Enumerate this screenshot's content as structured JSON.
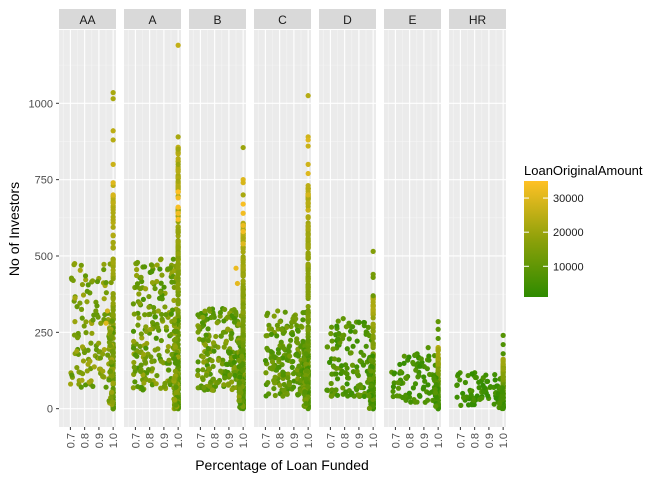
{
  "chart_data": {
    "type": "scatter",
    "xlabel": "Percentage of Loan Funded",
    "ylabel": "No of Investors",
    "facets": [
      "AA",
      "A",
      "B",
      "C",
      "D",
      "E",
      "HR"
    ],
    "xlim": [
      0.62,
      1.02
    ],
    "ylim": [
      -60,
      1240
    ],
    "x_ticks": [
      0.7,
      0.8,
      0.9,
      1.0
    ],
    "x_tick_labels": [
      "0.7",
      "0.8",
      "0.9",
      "1.0"
    ],
    "y_ticks": [
      0,
      250,
      500,
      750,
      1000
    ],
    "y_tick_labels": [
      "0",
      "250",
      "500",
      "750",
      "1000"
    ],
    "grid": true,
    "legend": {
      "title": "LoanOriginalAmount",
      "position": "right",
      "type": "colorbar",
      "range": [
        1000,
        35000
      ],
      "ticks": [
        10000,
        20000,
        30000
      ],
      "tick_labels": [
        "10000",
        "20000",
        "30000"
      ],
      "colors": {
        "low": "#2e8b00",
        "mid": "#8ea10a",
        "high": "#ffc125"
      }
    },
    "series": [
      {
        "facet": "AA",
        "x_range": [
          0.7,
          0.99
        ],
        "y_range": [
          70,
          480
        ],
        "amount_range": [
          8000,
          22000
        ],
        "full_y_max": 1035,
        "full_count": 130,
        "highlights": [
          [
            1.0,
            1035,
            22000
          ],
          [
            1.0,
            1015,
            22000
          ],
          [
            1.0,
            910,
            25000
          ],
          [
            1.0,
            880,
            24000
          ],
          [
            1.0,
            800,
            27000
          ],
          [
            1.0,
            740,
            30000
          ],
          [
            1.0,
            700,
            29000
          ],
          [
            0.73,
            475,
            18000
          ],
          [
            0.72,
            420,
            14000
          ],
          [
            0.96,
            320,
            28000
          ],
          [
            0.95,
            280,
            30000
          ],
          [
            0.71,
            110,
            9000
          ]
        ]
      },
      {
        "facet": "A",
        "x_range": [
          0.68,
          0.99
        ],
        "y_range": [
          60,
          490
        ],
        "amount_range": [
          6000,
          20000
        ],
        "full_y_max": 1190,
        "full_count": 220,
        "highlights": [
          [
            1.0,
            1190,
            26000
          ],
          [
            1.0,
            890,
            22000
          ],
          [
            1.0,
            850,
            21000
          ],
          [
            1.0,
            800,
            20000
          ],
          [
            1.0,
            710,
            35000
          ],
          [
            1.0,
            690,
            33000
          ],
          [
            1.0,
            660,
            34000
          ],
          [
            1.0,
            640,
            33000
          ],
          [
            1.0,
            620,
            34000
          ],
          [
            0.88,
            490,
            16000
          ],
          [
            0.74,
            430,
            14000
          ]
        ]
      },
      {
        "facet": "B",
        "x_range": [
          0.68,
          0.99
        ],
        "y_range": [
          60,
          330
        ],
        "amount_range": [
          5000,
          18000
        ],
        "full_y_max": 855,
        "full_count": 220,
        "highlights": [
          [
            1.0,
            855,
            20000
          ],
          [
            1.0,
            750,
            30000
          ],
          [
            1.0,
            740,
            29000
          ],
          [
            1.0,
            700,
            22000
          ],
          [
            1.0,
            670,
            34000
          ],
          [
            1.0,
            640,
            33000
          ],
          [
            1.0,
            600,
            32000
          ],
          [
            1.0,
            580,
            33000
          ],
          [
            1.0,
            540,
            30000
          ],
          [
            0.95,
            460,
            32000
          ],
          [
            0.96,
            410,
            31000
          ],
          [
            0.87,
            325,
            12000
          ]
        ]
      },
      {
        "facet": "C",
        "x_range": [
          0.7,
          0.99
        ],
        "y_range": [
          40,
          320
        ],
        "amount_range": [
          5000,
          16000
        ],
        "full_y_max": 1025,
        "full_count": 200,
        "highlights": [
          [
            1.0,
            1025,
            24000
          ],
          [
            1.0,
            890,
            28000
          ],
          [
            1.0,
            880,
            30000
          ],
          [
            1.0,
            860,
            27000
          ],
          [
            1.0,
            800,
            28000
          ],
          [
            1.0,
            770,
            30000
          ],
          [
            1.0,
            700,
            29000
          ],
          [
            1.0,
            650,
            27000
          ],
          [
            0.95,
            270,
            12000
          ]
        ]
      },
      {
        "facet": "D",
        "x_range": [
          0.67,
          0.99
        ],
        "y_range": [
          40,
          290
        ],
        "amount_range": [
          3000,
          12000
        ],
        "full_y_max": 515,
        "full_count": 130,
        "highlights": [
          [
            1.0,
            515,
            16000
          ],
          [
            1.0,
            440,
            14000
          ],
          [
            1.0,
            430,
            13000
          ],
          [
            1.0,
            370,
            12000
          ],
          [
            0.79,
            295,
            10000
          ],
          [
            0.83,
            280,
            9000
          ]
        ]
      },
      {
        "facet": "E",
        "x_range": [
          0.67,
          0.99
        ],
        "y_range": [
          20,
          180
        ],
        "amount_range": [
          2000,
          9000
        ],
        "full_y_max": 285,
        "full_count": 90,
        "highlights": [
          [
            1.0,
            285,
            10000
          ],
          [
            1.0,
            260,
            9000
          ],
          [
            1.0,
            230,
            8000
          ],
          [
            0.93,
            200,
            8000
          ]
        ]
      },
      {
        "facet": "HR",
        "x_range": [
          0.67,
          0.99
        ],
        "y_range": [
          10,
          120
        ],
        "amount_range": [
          1500,
          7000
        ],
        "full_y_max": 240,
        "full_count": 80,
        "highlights": [
          [
            1.0,
            240,
            8000
          ],
          [
            1.0,
            210,
            7000
          ],
          [
            1.0,
            180,
            6500
          ]
        ]
      }
    ]
  }
}
